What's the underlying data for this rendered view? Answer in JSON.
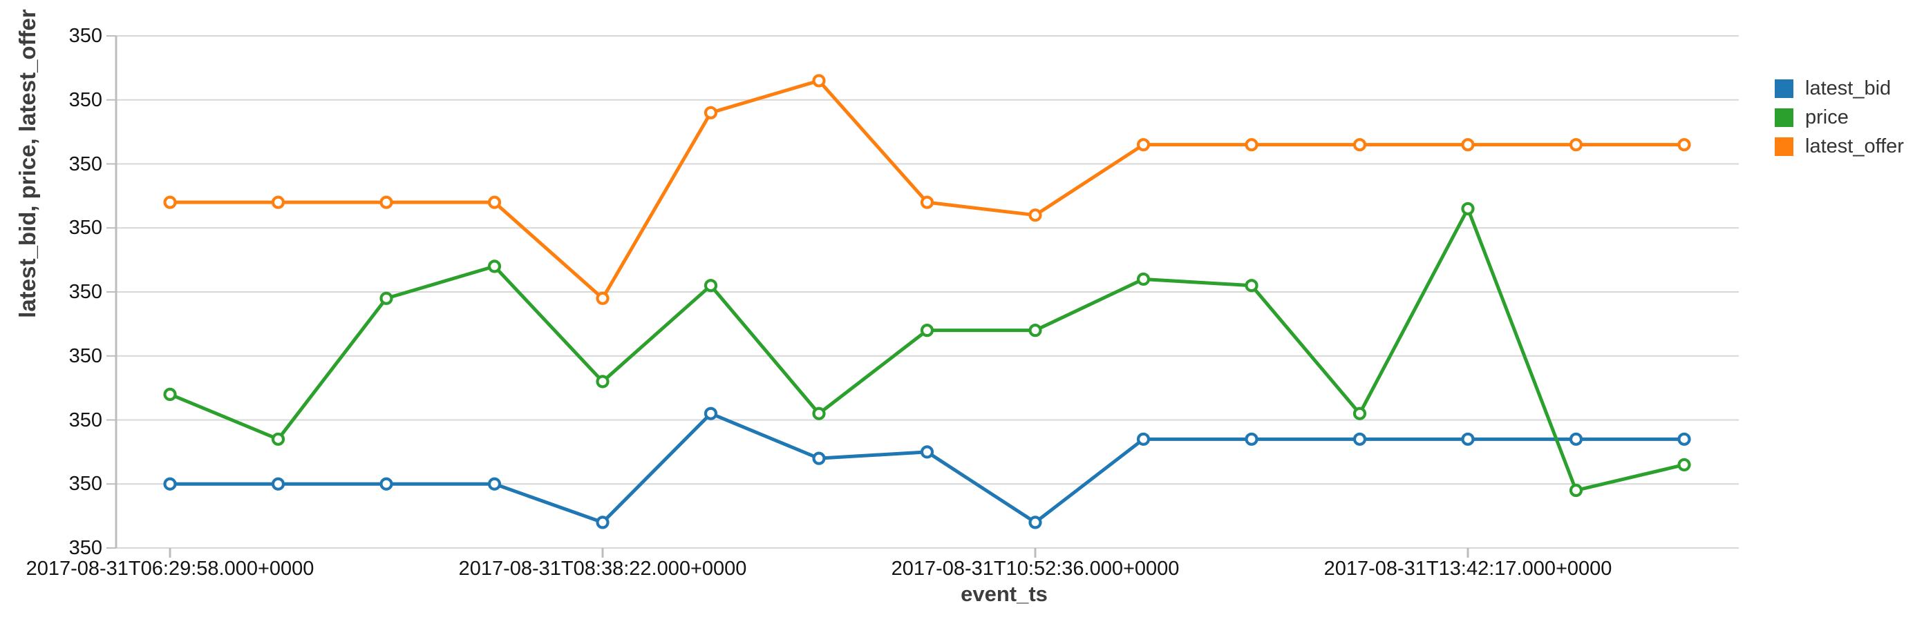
{
  "chart": {
    "x_axis_title": "event_ts",
    "y_axis_title": "latest_bid, price, latest_offer",
    "ytick_labels": [
      "350",
      "350",
      "350",
      "350",
      "350",
      "350",
      "350",
      "350",
      "350"
    ],
    "colors": {
      "background": "#ffffff",
      "gridline": "#d7d7d7",
      "axis": "#bdbdbd",
      "tick_text": "#141414",
      "axis_title_text": "#3d3d3d",
      "legend_text": "#333333"
    }
  },
  "chart_data": {
    "type": "line",
    "title": "",
    "xlabel": "event_ts",
    "ylabel": "latest_bid, price, latest_offer",
    "x_index": [
      0,
      1,
      2,
      3,
      4,
      5,
      6,
      7,
      8,
      9,
      10,
      11,
      12,
      13,
      14
    ],
    "xtick_indices": [
      0,
      4,
      8,
      12
    ],
    "xtick_labels": [
      "2017-08-31T06:29:58.000+0000",
      "2017-08-31T08:38:22.000+0000",
      "2017-08-31T10:52:36.000+0000",
      "2017-08-31T13:42:17.000+0000"
    ],
    "ylim": [
      349.6,
      350.4
    ],
    "ytick_step": 0.1,
    "ytick_rendered_label": "350",
    "grid": "horizontal",
    "legend_position": "right",
    "marker": "open-circle",
    "series": [
      {
        "name": "latest_bid",
        "color": "#1f77b4",
        "values": [
          349.7,
          349.7,
          349.7,
          349.7,
          349.64,
          349.81,
          349.74,
          349.75,
          349.64,
          349.77,
          349.77,
          349.77,
          349.77,
          349.77,
          349.77
        ]
      },
      {
        "name": "price",
        "color": "#2ca02c",
        "values": [
          349.84,
          349.77,
          349.99,
          350.04,
          349.86,
          350.01,
          349.81,
          349.94,
          349.94,
          350.02,
          350.01,
          349.81,
          350.13,
          349.69,
          349.73
        ]
      },
      {
        "name": "latest_offer",
        "color": "#ff7f0e",
        "values": [
          350.14,
          350.14,
          350.14,
          350.14,
          349.99,
          350.28,
          350.33,
          350.14,
          350.12,
          350.23,
          350.23,
          350.23,
          350.23,
          350.23,
          350.23
        ]
      }
    ]
  }
}
